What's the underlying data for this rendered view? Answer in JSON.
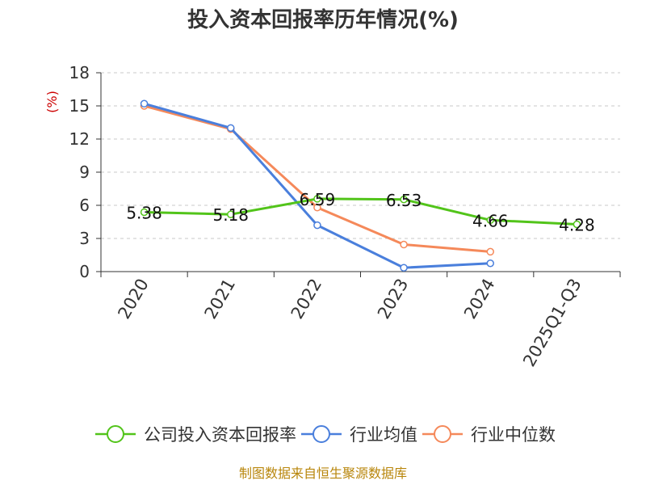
{
  "chart_data": {
    "type": "line",
    "title": "投入资本回报率历年情况(%)",
    "ylabel": "(%)",
    "xlabel": "",
    "categories": [
      "2020",
      "2021",
      "2022",
      "2023",
      "2024",
      "2025Q1-Q3"
    ],
    "ylim": [
      0,
      18
    ],
    "yticks": [
      0,
      3,
      6,
      9,
      12,
      15,
      18
    ],
    "grid": true,
    "legend_position": "bottom",
    "series": [
      {
        "name": "公司投入资本回报率",
        "color": "#52c41a",
        "values": [
          5.38,
          5.18,
          6.59,
          6.53,
          4.66,
          4.28
        ],
        "show_labels": true
      },
      {
        "name": "行业均值",
        "color": "#4a7fdc",
        "values": [
          15.2,
          13.0,
          4.2,
          0.35,
          0.75,
          null
        ],
        "show_labels": false
      },
      {
        "name": "行业中位数",
        "color": "#f5895a",
        "values": [
          15.0,
          12.9,
          5.8,
          2.45,
          1.8,
          null
        ],
        "show_labels": false
      }
    ]
  },
  "footer": {
    "source": "制图数据来自恒生聚源数据库"
  }
}
